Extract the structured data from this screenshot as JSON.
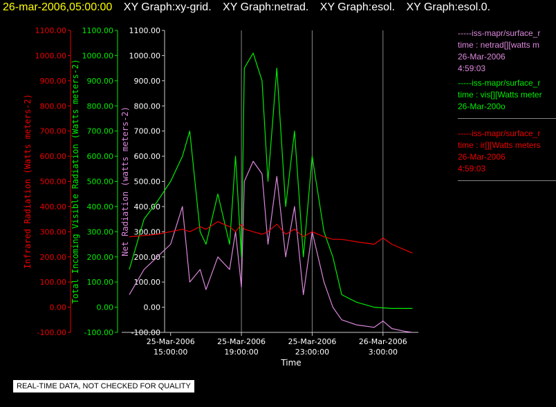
{
  "header": {
    "timestamp": "26-mar-2006,05:00:00",
    "graph_titles": [
      "XY Graph:xy-grid.",
      "XY Graph:netrad.",
      "XY Graph:esol.",
      "XY Graph:esol.0."
    ]
  },
  "legend": [
    {
      "color": "#dd88dd",
      "lines": [
        "-----iss-mapr/surface_r",
        "time : netrad[][watts m",
        "26-Mar-2006",
        "4:59:03"
      ]
    },
    {
      "color": "#00ee00",
      "lines": [
        "-----iss-mapr/surface_r",
        "time : vis[][Watts meter",
        "26-Mar-200o"
      ]
    },
    {
      "color": "#ee0000",
      "lines": [
        "-----iss-mapr/surface_r",
        "time : ir[][Watts meters",
        "26-Mar-2006",
        "4:59:03"
      ]
    }
  ],
  "quality_note": "REAL-TIME DATA, NOT CHECKED FOR QUALITY",
  "colors": {
    "ir": "#ee0000",
    "vis": "#00ee00",
    "net": "#dd88dd",
    "grid": "#888888",
    "axis": "#cccccc"
  },
  "chart_data": {
    "type": "line",
    "xlabel": "Time",
    "x_range": [
      "25-Mar-2006 12:40",
      "26-Mar-2006 05:00"
    ],
    "x_ticks": [
      {
        "time": "25-Mar-2006 15:00",
        "label": [
          "25-Mar-2006",
          "15:00:00"
        ]
      },
      {
        "time": "25-Mar-2006 19:00",
        "label": [
          "25-Mar-2006",
          "19:00:00"
        ]
      },
      {
        "time": "25-Mar-2006 23:00",
        "label": [
          "25-Mar-2006",
          "23:00:00"
        ]
      },
      {
        "time": "26-Mar-2006 03:00",
        "label": [
          "26-Mar-2006",
          "3:00:00"
        ]
      }
    ],
    "vertical_grid_at": [
      "25-Mar-2006 19:00",
      "25-Mar-2006 23:00",
      "26-Mar-2006 03:00"
    ],
    "axes": [
      {
        "id": "ir",
        "label": "Infrared Radiation (Watts meters-2)",
        "color": "#ee0000",
        "ylim": [
          -100,
          1100
        ],
        "tick_step": 100
      },
      {
        "id": "vis",
        "label": "Total Incoming Visible Radiation (Watts meters-2)",
        "color": "#00ee00",
        "ylim": [
          -100,
          1100
        ],
        "tick_step": 100
      },
      {
        "id": "net",
        "label": "Net Radiation (watts meters-2)",
        "color": "#ffffff",
        "ylim": [
          -100,
          1100
        ],
        "tick_step": 100
      }
    ],
    "series": [
      {
        "id": "vis",
        "axis": "vis",
        "x": [
          "25-Mar-2006 12:40",
          "25-Mar-2006 13:30",
          "25-Mar-2006 14:15",
          "25-Mar-2006 15:00",
          "25-Mar-2006 15:40",
          "25-Mar-2006 16:05",
          "25-Mar-2006 16:40",
          "25-Mar-2006 17:00",
          "25-Mar-2006 17:40",
          "25-Mar-2006 18:20",
          "25-Mar-2006 18:40",
          "25-Mar-2006 19:00",
          "25-Mar-2006 19:10",
          "25-Mar-2006 19:40",
          "25-Mar-2006 20:10",
          "25-Mar-2006 20:30",
          "25-Mar-2006 21:00",
          "25-Mar-2006 21:30",
          "25-Mar-2006 22:00",
          "25-Mar-2006 22:30",
          "25-Mar-2006 23:00",
          "25-Mar-2006 23:40",
          "26-Mar-2006 00:10",
          "26-Mar-2006 00:40",
          "26-Mar-2006 01:30",
          "26-Mar-2006 02:30",
          "26-Mar-2006 03:30",
          "26-Mar-2006 04:10",
          "26-Mar-2006 04:40"
        ],
        "values": [
          150,
          350,
          420,
          500,
          600,
          700,
          300,
          250,
          450,
          250,
          600,
          200,
          950,
          1010,
          900,
          500,
          950,
          400,
          700,
          200,
          600,
          300,
          200,
          50,
          20,
          0,
          -5,
          -5,
          -5
        ]
      },
      {
        "id": "net",
        "axis": "net",
        "x": [
          "25-Mar-2006 12:40",
          "25-Mar-2006 13:30",
          "25-Mar-2006 14:15",
          "25-Mar-2006 15:00",
          "25-Mar-2006 15:40",
          "25-Mar-2006 16:05",
          "25-Mar-2006 16:40",
          "25-Mar-2006 17:00",
          "25-Mar-2006 17:40",
          "25-Mar-2006 18:20",
          "25-Mar-2006 18:40",
          "25-Mar-2006 19:00",
          "25-Mar-2006 19:10",
          "25-Mar-2006 19:40",
          "25-Mar-2006 20:10",
          "25-Mar-2006 20:30",
          "25-Mar-2006 21:00",
          "25-Mar-2006 21:30",
          "25-Mar-2006 22:00",
          "25-Mar-2006 22:30",
          "25-Mar-2006 23:00",
          "25-Mar-2006 23:40",
          "26-Mar-2006 00:10",
          "26-Mar-2006 00:40",
          "26-Mar-2006 01:30",
          "26-Mar-2006 02:30",
          "26-Mar-2006 03:00",
          "26-Mar-2006 03:30",
          "26-Mar-2006 04:10",
          "26-Mar-2006 04:40"
        ],
        "values": [
          50,
          150,
          200,
          250,
          400,
          100,
          150,
          70,
          200,
          150,
          300,
          80,
          500,
          580,
          530,
          250,
          520,
          200,
          400,
          50,
          300,
          100,
          0,
          -50,
          -70,
          -80,
          -55,
          -85,
          -95,
          -100
        ]
      },
      {
        "id": "ir",
        "axis": "ir",
        "x": [
          "25-Mar-2006 12:40",
          "25-Mar-2006 13:30",
          "25-Mar-2006 14:15",
          "25-Mar-2006 15:00",
          "25-Mar-2006 15:40",
          "25-Mar-2006 16:05",
          "25-Mar-2006 16:40",
          "25-Mar-2006 17:00",
          "25-Mar-2006 17:40",
          "25-Mar-2006 18:20",
          "25-Mar-2006 18:40",
          "25-Mar-2006 19:00",
          "25-Mar-2006 19:10",
          "25-Mar-2006 19:40",
          "25-Mar-2006 20:10",
          "25-Mar-2006 20:30",
          "25-Mar-2006 21:00",
          "25-Mar-2006 21:30",
          "25-Mar-2006 22:00",
          "25-Mar-2006 22:30",
          "25-Mar-2006 23:00",
          "25-Mar-2006 23:40",
          "26-Mar-2006 00:10",
          "26-Mar-2006 00:40",
          "26-Mar-2006 01:30",
          "26-Mar-2006 02:30",
          "26-Mar-2006 03:00",
          "26-Mar-2006 03:30",
          "26-Mar-2006 04:10",
          "26-Mar-2006 04:40"
        ],
        "values": [
          280,
          285,
          290,
          300,
          310,
          300,
          320,
          310,
          340,
          320,
          300,
          330,
          310,
          300,
          290,
          300,
          330,
          290,
          310,
          280,
          300,
          280,
          270,
          270,
          260,
          250,
          275,
          250,
          230,
          215
        ]
      }
    ]
  }
}
